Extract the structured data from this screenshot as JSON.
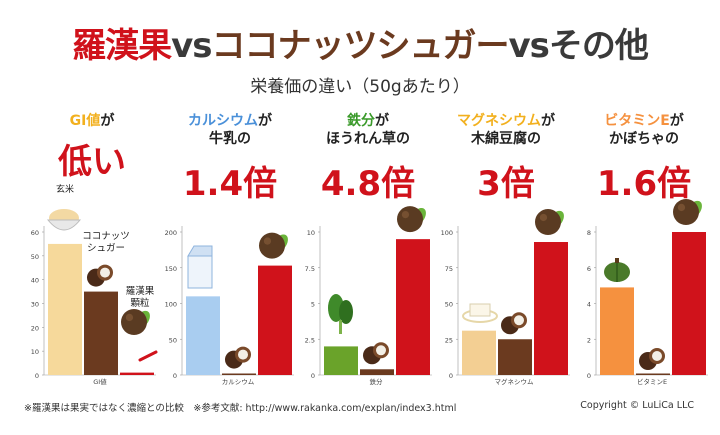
{
  "header": {
    "title_parts": [
      {
        "text": "羅漢果",
        "color": "#d0121b"
      },
      {
        "text": "vs",
        "color": "#3a3a3a"
      },
      {
        "text": "ココナッツシュガー",
        "color": "#6b3a1f"
      },
      {
        "text": "vs",
        "color": "#3a3a3a"
      },
      {
        "text": "その他",
        "color": "#3a3a3a"
      }
    ],
    "subtitle": "栄養価の違い（50gあたり）"
  },
  "footer": {
    "note": "※羅漢果は果実ではなく濃縮との比較　※参考文献: http://www.rakanka.com/explan/index3.html",
    "copyright": "Copyright © LuLiCa LLC"
  },
  "colors": {
    "red": "#d0121b",
    "brown": "#6b3a1f",
    "beige": "#f6d99b",
    "lightblue": "#a9cdf0",
    "green": "#6aa32a",
    "tan": "#f3cf93",
    "orange": "#f5913f",
    "coconut": "#7a4a2a"
  },
  "chart_data": [
    {
      "type": "bar",
      "keyword": "GI値",
      "keyword_color": "#f2b01e",
      "head_rest": "が",
      "head_line2": "",
      "big": "低い",
      "category_label": "GI値",
      "labels": {
        "comparison": "玄米",
        "coconut": "ココナッツ シュガー",
        "luohan": "羅漢果 顆粒"
      },
      "ylim": [
        0,
        60
      ],
      "yticks": [
        0,
        10,
        20,
        30,
        40,
        50,
        60
      ],
      "series": [
        {
          "name": "玄米",
          "value": 55,
          "color": "#f6d99b"
        },
        {
          "name": "ココナッツシュガー",
          "value": 35,
          "color": "#6b3a1f"
        },
        {
          "name": "羅漢果",
          "value": 1,
          "color": "#d0121b"
        }
      ]
    },
    {
      "type": "bar",
      "keyword": "カルシウム",
      "keyword_color": "#4a90d9",
      "head_rest": "が",
      "head_line2": "牛乳の",
      "big": "1.4倍",
      "category_label": "カルシウム",
      "ylim": [
        0,
        200
      ],
      "yticks": [
        0,
        50,
        100,
        150,
        200
      ],
      "series": [
        {
          "name": "牛乳",
          "value": 110,
          "color": "#a9cdf0"
        },
        {
          "name": "ココナッツシュガー",
          "value": 2,
          "color": "#6b3a1f"
        },
        {
          "name": "羅漢果",
          "value": 153,
          "color": "#d0121b"
        }
      ]
    },
    {
      "type": "bar",
      "keyword": "鉄分",
      "keyword_color": "#3a9a2a",
      "head_rest": "が",
      "head_line2": "ほうれん草の",
      "big": "4.8倍",
      "category_label": "鉄分",
      "ylim": [
        0,
        10
      ],
      "yticks": [
        0,
        2.5,
        5,
        7.5,
        10
      ],
      "series": [
        {
          "name": "ほうれん草",
          "value": 2.0,
          "color": "#6aa32a"
        },
        {
          "name": "ココナッツシュガー",
          "value": 0.4,
          "color": "#6b3a1f"
        },
        {
          "name": "羅漢果",
          "value": 9.5,
          "color": "#d0121b"
        }
      ]
    },
    {
      "type": "bar",
      "keyword": "マグネシウム",
      "keyword_color": "#f2b01e",
      "head_rest": "が",
      "head_line2": "木綿豆腐の",
      "big": "3倍",
      "category_label": "マグネシウム",
      "ylim": [
        0,
        100
      ],
      "yticks": [
        0,
        25,
        50,
        75,
        100
      ],
      "series": [
        {
          "name": "木綿豆腐",
          "value": 31,
          "color": "#f3cf93"
        },
        {
          "name": "ココナッツシュガー",
          "value": 25,
          "color": "#6b3a1f"
        },
        {
          "name": "羅漢果",
          "value": 93,
          "color": "#d0121b"
        }
      ]
    },
    {
      "type": "bar",
      "keyword": "ビタミンE",
      "keyword_color": "#f5913f",
      "head_rest": "が",
      "head_line2": "かぼちゃの",
      "big": "1.6倍",
      "category_label": "ビタミンE",
      "ylim": [
        0,
        8
      ],
      "yticks": [
        0,
        2,
        4,
        6,
        8
      ],
      "series": [
        {
          "name": "かぼちゃ",
          "value": 4.9,
          "color": "#f5913f"
        },
        {
          "name": "ココナッツシュガー",
          "value": 0.0,
          "color": "#6b3a1f"
        },
        {
          "name": "羅漢果",
          "value": 8.0,
          "color": "#d0121b"
        }
      ]
    }
  ]
}
